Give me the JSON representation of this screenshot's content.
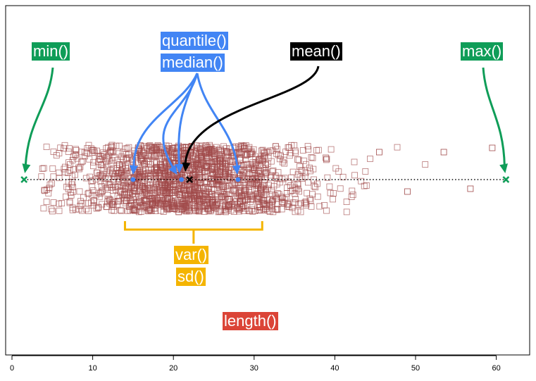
{
  "colors": {
    "green": "#0f9d58",
    "blue": "#4285f4",
    "black": "#000000",
    "orange": "#f4b400",
    "red": "#db4437",
    "points": "#a04a4a"
  },
  "labels": {
    "min": "min()",
    "quantile": "quantile()",
    "median": "median()",
    "mean": "mean()",
    "max": "max()",
    "var": "var()",
    "sd": "sd()",
    "length": "length()"
  },
  "chart_data": {
    "type": "scatter",
    "title": "",
    "xlabel": "",
    "ylabel": "",
    "xlim": [
      0,
      63
    ],
    "x_ticks": [
      0,
      10,
      20,
      30,
      40,
      50,
      60
    ],
    "stats": {
      "min": 1.5,
      "q25": 15,
      "median": 21,
      "mean": 22,
      "q75": 28,
      "max": 61.2,
      "sd_range": [
        14,
        31
      ]
    },
    "points_description_count": 1800
  }
}
